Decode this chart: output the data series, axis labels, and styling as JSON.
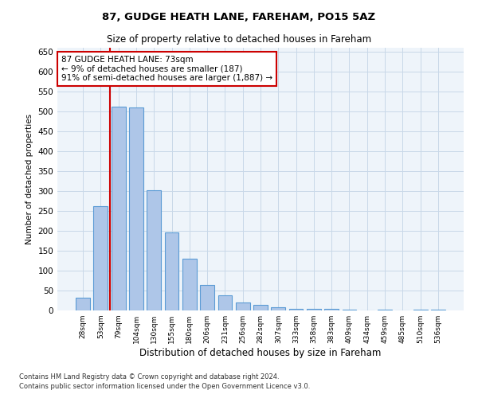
{
  "title1": "87, GUDGE HEATH LANE, FAREHAM, PO15 5AZ",
  "title2": "Size of property relative to detached houses in Fareham",
  "xlabel": "Distribution of detached houses by size in Fareham",
  "ylabel": "Number of detached properties",
  "footnote1": "Contains HM Land Registry data © Crown copyright and database right 2024.",
  "footnote2": "Contains public sector information licensed under the Open Government Licence v3.0.",
  "categories": [
    "28sqm",
    "53sqm",
    "79sqm",
    "104sqm",
    "130sqm",
    "155sqm",
    "180sqm",
    "206sqm",
    "231sqm",
    "256sqm",
    "282sqm",
    "307sqm",
    "333sqm",
    "358sqm",
    "383sqm",
    "409sqm",
    "434sqm",
    "459sqm",
    "485sqm",
    "510sqm",
    "536sqm"
  ],
  "values": [
    32,
    263,
    512,
    510,
    302,
    196,
    130,
    65,
    38,
    21,
    15,
    9,
    5,
    5,
    4,
    2,
    0,
    3,
    0,
    3,
    3
  ],
  "bar_color": "#aec6e8",
  "bar_edge_color": "#5b9bd5",
  "highlight_color": "#cc0000",
  "annotation_text": "87 GUDGE HEATH LANE: 73sqm\n← 9% of detached houses are smaller (187)\n91% of semi-detached houses are larger (1,887) →",
  "annotation_box_color": "#ffffff",
  "annotation_box_edge": "#cc0000",
  "ylim": [
    0,
    660
  ],
  "yticks": [
    0,
    50,
    100,
    150,
    200,
    250,
    300,
    350,
    400,
    450,
    500,
    550,
    600,
    650
  ],
  "grid_color": "#c8d8e8",
  "bg_color": "#eef4fa"
}
